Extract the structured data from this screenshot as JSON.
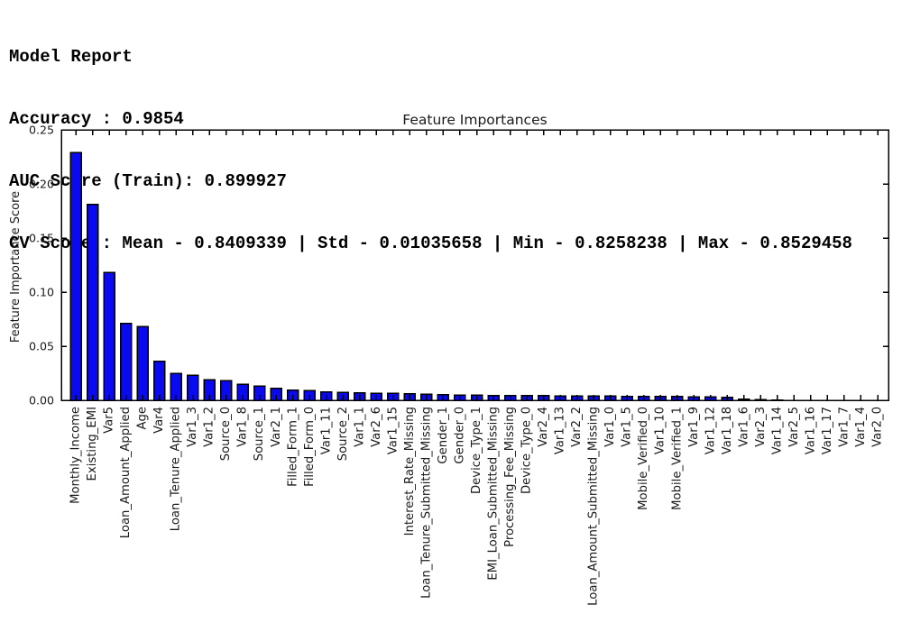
{
  "report": {
    "title_line": "Model Report",
    "accuracy_line": "Accuracy : 0.9854",
    "auc_line": "AUC Score (Train): 0.899927",
    "cv_line": "CV Score : Mean - 0.8409339 | Std - 0.01035658 | Min - 0.8258238 | Max - 0.8529458"
  },
  "chart_data": {
    "type": "bar",
    "title": "Feature Importances",
    "xlabel": "",
    "ylabel": "Feature Importance Score",
    "ylim": [
      0,
      0.25
    ],
    "yticks": [
      0.0,
      0.05,
      0.1,
      0.15,
      0.2,
      0.25
    ],
    "grid": false,
    "legend": false,
    "bar_color": "#0a0af0",
    "bar_edge_color": "#000000",
    "axis_color": "#000000",
    "categories": [
      "Monthly_Income",
      "Existing_EMI",
      "Var5",
      "Loan_Amount_Applied",
      "Age",
      "Var4",
      "Loan_Tenure_Applied",
      "Var1_3",
      "Var1_2",
      "Source_0",
      "Var1_8",
      "Source_1",
      "Var2_1",
      "Filled_Form_1",
      "Filled_Form_0",
      "Var1_11",
      "Source_2",
      "Var1_1",
      "Var2_6",
      "Var1_15",
      "Interest_Rate_Missing",
      "Loan_Tenure_Submitted_Missing",
      "Gender_1",
      "Gender_0",
      "Device_Type_1",
      "EMI_Loan_Submitted_Missing",
      "Processing_Fee_Missing",
      "Device_Type_0",
      "Var2_4",
      "Var1_13",
      "Var2_2",
      "Loan_Amount_Submitted_Missing",
      "Var1_0",
      "Var1_5",
      "Mobile_Verified_0",
      "Var1_10",
      "Mobile_Verified_1",
      "Var1_9",
      "Var1_12",
      "Var1_18",
      "Var1_6",
      "Var2_3",
      "Var1_14",
      "Var2_5",
      "Var1_16",
      "Var1_17",
      "Var1_7",
      "Var1_4",
      "Var2_0"
    ],
    "values": [
      0.229,
      0.181,
      0.118,
      0.071,
      0.068,
      0.036,
      0.025,
      0.023,
      0.019,
      0.018,
      0.015,
      0.013,
      0.011,
      0.0095,
      0.0088,
      0.0078,
      0.0075,
      0.007,
      0.0066,
      0.0064,
      0.0061,
      0.0058,
      0.0052,
      0.0048,
      0.0047,
      0.0045,
      0.0044,
      0.0043,
      0.0042,
      0.0041,
      0.004,
      0.0039,
      0.0038,
      0.0037,
      0.0036,
      0.0035,
      0.0034,
      0.0032,
      0.003,
      0.0028,
      0.0012,
      0.0008,
      0.0003,
      0.0002,
      0.0001,
      0.0001,
      0.0001,
      0.0,
      0.0
    ]
  }
}
